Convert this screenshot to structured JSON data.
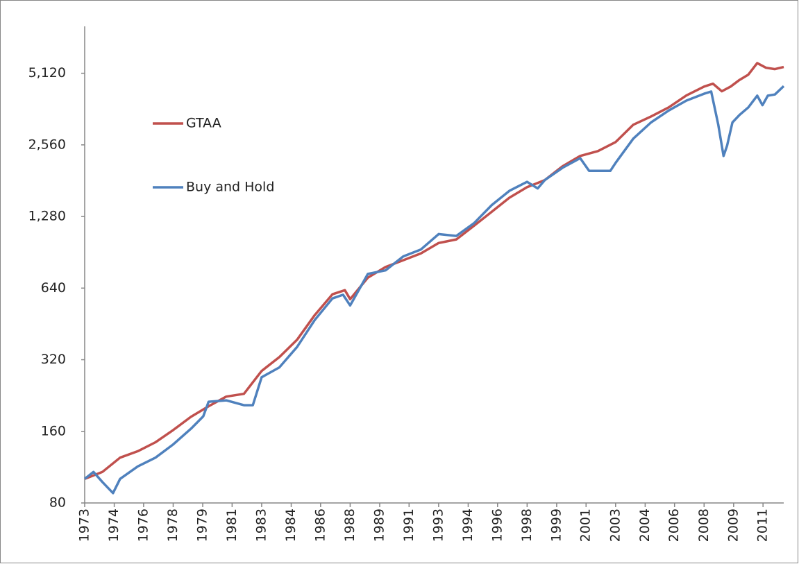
{
  "chart_data": {
    "type": "line",
    "log_scale_y": true,
    "legend": "upper left",
    "grid": false,
    "xlim": [
      1973,
      2012.5
    ],
    "ylim": [
      80,
      8060
    ],
    "xticks": [
      {
        "value": 1973,
        "label": "1973"
      },
      {
        "value": 1974.67,
        "label": "1974"
      },
      {
        "value": 1976.33,
        "label": "1976"
      },
      {
        "value": 1978,
        "label": "1978"
      },
      {
        "value": 1979.67,
        "label": "1979"
      },
      {
        "value": 1981.33,
        "label": "1981"
      },
      {
        "value": 1983,
        "label": "1983"
      },
      {
        "value": 1984.67,
        "label": "1984"
      },
      {
        "value": 1986.33,
        "label": "1986"
      },
      {
        "value": 1988,
        "label": "1988"
      },
      {
        "value": 1989.67,
        "label": "1989"
      },
      {
        "value": 1991.33,
        "label": "1991"
      },
      {
        "value": 1993,
        "label": "1993"
      },
      {
        "value": 1994.67,
        "label": "1994"
      },
      {
        "value": 1996.33,
        "label": "1996"
      },
      {
        "value": 1998,
        "label": "1998"
      },
      {
        "value": 1999.67,
        "label": "1999"
      },
      {
        "value": 2001.33,
        "label": "2001"
      },
      {
        "value": 2003,
        "label": "2003"
      },
      {
        "value": 2004.67,
        "label": "2004"
      },
      {
        "value": 2006.33,
        "label": "2006"
      },
      {
        "value": 2008,
        "label": "2008"
      },
      {
        "value": 2009.67,
        "label": "2009"
      },
      {
        "value": 2011.33,
        "label": "2011"
      }
    ],
    "yticks": [
      80,
      160,
      320,
      640,
      {
        "value": 1280,
        "label": "1,280"
      },
      {
        "value": 2560,
        "label": "2,560"
      },
      {
        "value": 5120,
        "label": "5,120"
      }
    ],
    "series": [
      {
        "name": "GTAA",
        "color": "#c0504d",
        "x": [
          1973,
          1974,
          1975,
          1976,
          1977,
          1978,
          1979,
          1980,
          1981,
          1982,
          1983,
          1984,
          1985,
          1986,
          1987,
          1987.7,
          1988,
          1989,
          1990,
          1991,
          1992,
          1993,
          1994,
          1995,
          1996,
          1997,
          1998,
          1999,
          2000,
          2001,
          2002,
          2003,
          2004,
          2005,
          2006,
          2007,
          2008,
          2008.5,
          2009,
          2009.5,
          2010,
          2010.5,
          2011,
          2011.5,
          2012,
          2012.5
        ],
        "values": [
          101,
          108,
          124,
          132,
          144,
          162,
          184,
          204,
          224,
          230,
          287,
          328,
          388,
          493,
          603,
          627,
          575,
          708,
          785,
          838,
          895,
          990,
          1025,
          1170,
          1340,
          1535,
          1700,
          1820,
          2080,
          2300,
          2410,
          2630,
          3110,
          3370,
          3680,
          4130,
          4500,
          4630,
          4300,
          4500,
          4800,
          5050,
          5650,
          5400,
          5330,
          5440
        ]
      },
      {
        "name": "Buy and Hold",
        "color": "#4f81bd",
        "x": [
          1973,
          1973.5,
          1974,
          1974.6,
          1975,
          1976,
          1977,
          1978,
          1979,
          1979.7,
          1980,
          1981,
          1982,
          1982.5,
          1983,
          1984,
          1985,
          1986,
          1987,
          1987.6,
          1988,
          1989,
          1990,
          1991,
          1992,
          1993,
          1994,
          1995,
          1996,
          1997,
          1998,
          1998.6,
          1999,
          2000,
          2001,
          2001.5,
          2002,
          2002.7,
          2003,
          2004,
          2005,
          2006,
          2007,
          2008,
          2008.4,
          2008.8,
          2009.1,
          2009.3,
          2009.6,
          2010,
          2010.5,
          2011,
          2011.3,
          2011.6,
          2012,
          2012.5
        ],
        "values": [
          101,
          108,
          98,
          88,
          101,
          114,
          124,
          141,
          164,
          185,
          213,
          216,
          206,
          206,
          270,
          297,
          362,
          470,
          579,
          600,
          541,
          734,
          760,
          870,
          930,
          1080,
          1060,
          1200,
          1430,
          1640,
          1790,
          1680,
          1820,
          2050,
          2250,
          1990,
          1990,
          1990,
          2150,
          2720,
          3180,
          3570,
          3930,
          4200,
          4290,
          3110,
          2300,
          2540,
          3180,
          3420,
          3680,
          4120,
          3760,
          4120,
          4170,
          4520
        ]
      }
    ]
  }
}
